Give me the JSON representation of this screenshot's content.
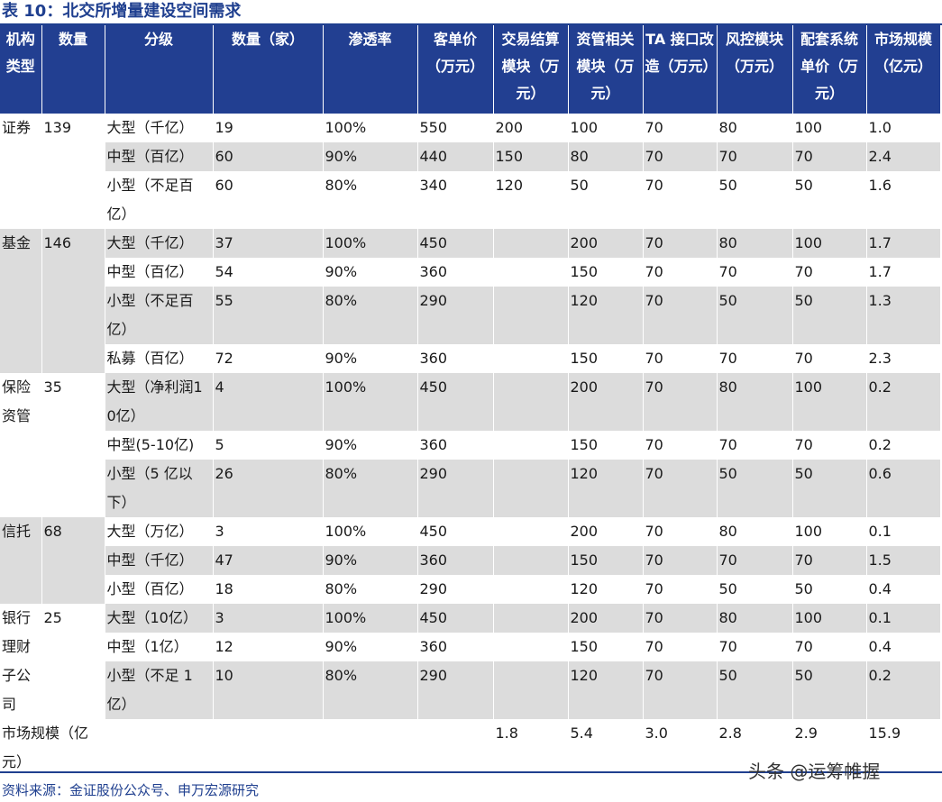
{
  "title": "表 10：北交所增量建设空间需求",
  "headers": [
    "机构类型",
    "数量",
    "分级",
    "数量（家）",
    "渗透率",
    "客单价（万元）",
    "交易结算模块（万元）",
    "资管相关模块（万元）",
    "TA 接口改造（万元）",
    "风控模块（万元）",
    "配套系统单价（万元）",
    "市场规模（亿元）"
  ],
  "groups": [
    {
      "type": "证券",
      "count": "139",
      "rows": [
        [
          "大型（千亿）",
          "19",
          "100%",
          "550",
          "200",
          "100",
          "70",
          "80",
          "100",
          "1.0"
        ],
        [
          "中型（百亿）",
          "60",
          "90%",
          "440",
          "150",
          "80",
          "70",
          "70",
          "70",
          "2.4"
        ],
        [
          "小型（不足百亿）",
          "60",
          "80%",
          "340",
          "120",
          "50",
          "70",
          "50",
          "50",
          "1.6"
        ]
      ]
    },
    {
      "type": "基金",
      "count": "146",
      "rows": [
        [
          "大型（千亿）",
          "37",
          "100%",
          "450",
          "",
          "200",
          "70",
          "80",
          "100",
          "1.7"
        ],
        [
          "中型（百亿）",
          "54",
          "90%",
          "360",
          "",
          "150",
          "70",
          "70",
          "70",
          "1.7"
        ],
        [
          "小型（不足百亿）",
          "55",
          "80%",
          "290",
          "",
          "120",
          "70",
          "50",
          "50",
          "1.3"
        ],
        [
          "私募（百亿）",
          "72",
          "90%",
          "360",
          "",
          "150",
          "70",
          "70",
          "70",
          "2.3"
        ]
      ]
    },
    {
      "type": "保险资管",
      "count": "35",
      "rows": [
        [
          "大型（净利润10亿）",
          "4",
          "100%",
          "450",
          "",
          "200",
          "70",
          "80",
          "100",
          "0.2"
        ],
        [
          "中型(5-10亿)",
          "5",
          "90%",
          "360",
          "",
          "150",
          "70",
          "70",
          "70",
          "0.2"
        ],
        [
          "小型（5 亿以下）",
          "26",
          "80%",
          "290",
          "",
          "120",
          "70",
          "50",
          "50",
          "0.6"
        ]
      ]
    },
    {
      "type": "信托",
      "count": "68",
      "rows": [
        [
          "大型（万亿）",
          "3",
          "100%",
          "450",
          "",
          "200",
          "70",
          "80",
          "100",
          "0.1"
        ],
        [
          "中型（千亿）",
          "47",
          "90%",
          "360",
          "",
          "150",
          "70",
          "70",
          "70",
          "1.5"
        ],
        [
          "小型（百亿）",
          "18",
          "80%",
          "290",
          "",
          "120",
          "70",
          "50",
          "50",
          "0.4"
        ]
      ]
    },
    {
      "type": "银行理财子公司",
      "count": "25",
      "rows": [
        [
          "大型（10亿）",
          "3",
          "100%",
          "450",
          "",
          "200",
          "70",
          "80",
          "100",
          "0.1"
        ],
        [
          "中型（1亿）",
          "12",
          "90%",
          "360",
          "",
          "150",
          "70",
          "70",
          "70",
          "0.4"
        ],
        [
          "小型（不足 1 亿）",
          "10",
          "80%",
          "290",
          "",
          "120",
          "70",
          "50",
          "50",
          "0.2"
        ]
      ]
    }
  ],
  "total": {
    "label": "市场规模（亿元）",
    "values": [
      "",
      "",
      "",
      "",
      "1.8",
      "5.4",
      "3.0",
      "2.8",
      "2.9",
      "15.9"
    ]
  },
  "source": "资料来源：金证股份公众号、申万宏源研究",
  "watermark": "头条 @运筹帷握"
}
